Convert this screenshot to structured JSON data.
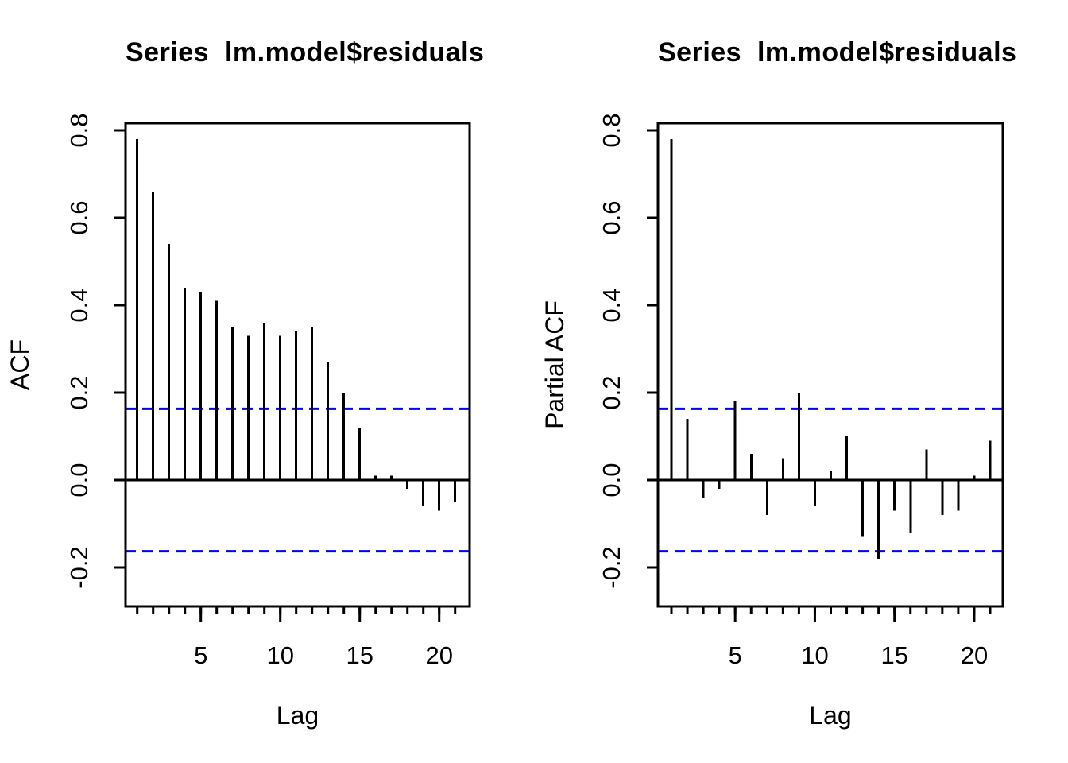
{
  "figure": {
    "background": "#FFFFFF",
    "foreground": "#000000",
    "ci_line_color": "#0000FF"
  },
  "chart_data": [
    {
      "id": "acf",
      "type": "bar",
      "bar_style": "vertical-stick",
      "title": "Series  lm.model$residuals",
      "xlabel": "Lag",
      "ylabel": "ACF",
      "x": [
        1,
        2,
        3,
        4,
        5,
        6,
        7,
        8,
        9,
        10,
        11,
        12,
        13,
        14,
        15,
        16,
        17,
        18,
        19,
        20,
        21
      ],
      "values": [
        0.78,
        0.66,
        0.54,
        0.44,
        0.43,
        0.41,
        0.35,
        0.33,
        0.36,
        0.33,
        0.34,
        0.35,
        0.27,
        0.2,
        0.12,
        0.01,
        0.01,
        -0.02,
        -0.06,
        -0.07,
        -0.05
      ],
      "confidence_bands": {
        "upper": 0.163,
        "lower": -0.163,
        "style": "dashed"
      },
      "ylim": [
        -0.29,
        0.82
      ],
      "xlim": [
        0.2,
        21.8
      ],
      "yticks": {
        "values": [
          0.8,
          0.6,
          0.4,
          0.2,
          0.0,
          -0.2
        ],
        "labels": [
          "0.8",
          "0.6",
          "0.4",
          "0.2",
          "0.0",
          "-0.2"
        ]
      },
      "xticks_major": {
        "values": [
          5,
          10,
          15,
          20
        ],
        "labels": [
          "5",
          "10",
          "15",
          "20"
        ]
      },
      "xticks_minor_every_lag": true,
      "grid": false,
      "legend": null
    },
    {
      "id": "pacf",
      "type": "bar",
      "bar_style": "vertical-stick",
      "title": "Series  lm.model$residuals",
      "xlabel": "Lag",
      "ylabel": "Partial ACF",
      "x": [
        1,
        2,
        3,
        4,
        5,
        6,
        7,
        8,
        9,
        10,
        11,
        12,
        13,
        14,
        15,
        16,
        17,
        18,
        19,
        20,
        21
      ],
      "values": [
        0.78,
        0.14,
        -0.04,
        -0.02,
        0.18,
        0.06,
        -0.08,
        0.05,
        0.2,
        -0.06,
        0.02,
        0.1,
        -0.13,
        -0.18,
        -0.07,
        -0.12,
        0.07,
        -0.08,
        -0.07,
        0.01,
        0.09
      ],
      "confidence_bands": {
        "upper": 0.163,
        "lower": -0.163,
        "style": "dashed"
      },
      "ylim": [
        -0.29,
        0.82
      ],
      "xlim": [
        0.2,
        21.8
      ],
      "yticks": {
        "values": [
          0.8,
          0.6,
          0.4,
          0.2,
          0.0,
          -0.2
        ],
        "labels": [
          "0.8",
          "0.6",
          "0.4",
          "0.2",
          "0.0",
          "-0.2"
        ]
      },
      "xticks_major": {
        "values": [
          5,
          10,
          15,
          20
        ],
        "labels": [
          "5",
          "10",
          "15",
          "20"
        ]
      },
      "xticks_minor_every_lag": true,
      "grid": false,
      "legend": null
    }
  ]
}
